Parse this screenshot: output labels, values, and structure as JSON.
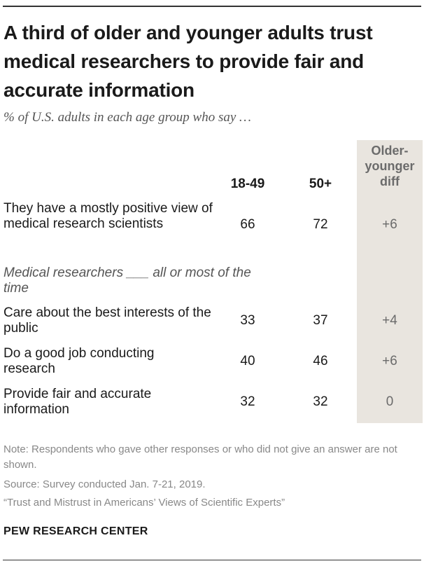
{
  "title": "A third of older and younger adults trust medical researchers to provide fair and accurate information",
  "subtitle": "% of U.S. adults in each age group who say …",
  "section_label": "Medical researchers ___ all or most of the time",
  "note": "Note: Respondents who gave other responses or who did not give an answer are not shown.",
  "source": "Source: Survey conducted Jan. 7-21, 2019.",
  "report": "“Trust and Mistrust in Americans’ Views of Scientific Experts”",
  "brand": "PEW RESEARCH CENTER",
  "chart_data": {
    "type": "table",
    "columns": [
      "18-49",
      "50+",
      "Older-younger diff"
    ],
    "rows": [
      {
        "label": "They have a mostly positive view of medical research scientists",
        "values": [
          66,
          72
        ],
        "diff": "+6"
      },
      {
        "label": "Care about the best interests of the public",
        "values": [
          33,
          37
        ],
        "diff": "+4"
      },
      {
        "label": "Do a good job conducting research",
        "values": [
          40,
          46
        ],
        "diff": "+6"
      },
      {
        "label": "Provide fair and accurate information",
        "values": [
          32,
          32
        ],
        "diff": "0"
      }
    ]
  }
}
